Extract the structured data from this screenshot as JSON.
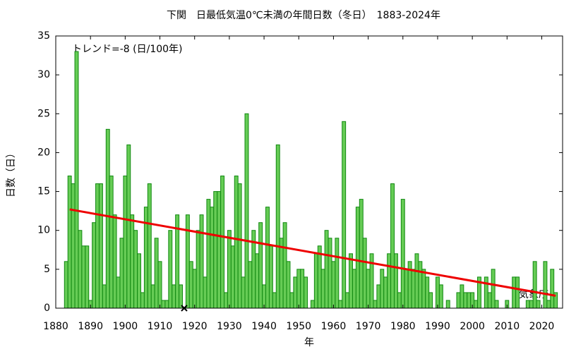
{
  "chart_data": {
    "type": "bar",
    "title": "下関　日最低気温0℃未満の年間日数（冬日）　1883-2024年",
    "xlabel": "年",
    "ylabel": "日数（日）",
    "annotations": [
      "トレンド=-8 (日/100年)",
      "気象庁"
    ],
    "x": [
      1883,
      1884,
      1885,
      1886,
      1887,
      1888,
      1889,
      1890,
      1891,
      1892,
      1893,
      1894,
      1895,
      1896,
      1897,
      1898,
      1899,
      1900,
      1901,
      1902,
      1903,
      1904,
      1905,
      1906,
      1907,
      1908,
      1909,
      1910,
      1911,
      1912,
      1913,
      1914,
      1915,
      1916,
      1917,
      1918,
      1919,
      1920,
      1921,
      1922,
      1923,
      1924,
      1925,
      1926,
      1927,
      1928,
      1929,
      1930,
      1931,
      1932,
      1933,
      1934,
      1935,
      1936,
      1937,
      1938,
      1939,
      1940,
      1941,
      1942,
      1943,
      1944,
      1945,
      1946,
      1947,
      1948,
      1949,
      1950,
      1951,
      1952,
      1953,
      1954,
      1955,
      1956,
      1957,
      1958,
      1959,
      1960,
      1961,
      1962,
      1963,
      1964,
      1965,
      1966,
      1967,
      1968,
      1969,
      1970,
      1971,
      1972,
      1973,
      1974,
      1975,
      1976,
      1977,
      1978,
      1979,
      1980,
      1981,
      1982,
      1983,
      1984,
      1985,
      1986,
      1987,
      1988,
      1989,
      1990,
      1991,
      1992,
      1993,
      1994,
      1995,
      1996,
      1997,
      1998,
      1999,
      2000,
      2001,
      2002,
      2003,
      2004,
      2005,
      2006,
      2007,
      2008,
      2009,
      2010,
      2011,
      2012,
      2013,
      2014,
      2015,
      2016,
      2017,
      2018,
      2019,
      2020,
      2021,
      2022,
      2023,
      2024
    ],
    "values": [
      6,
      17,
      16,
      33,
      10,
      8,
      8,
      1,
      11,
      16,
      16,
      3,
      23,
      17,
      12,
      4,
      9,
      17,
      21,
      12,
      10,
      7,
      2,
      13,
      16,
      3,
      9,
      6,
      1,
      1,
      10,
      3,
      12,
      3,
      null,
      12,
      6,
      5,
      10,
      12,
      4,
      14,
      13,
      15,
      15,
      17,
      2,
      10,
      8,
      17,
      16,
      4,
      25,
      6,
      10,
      7,
      11,
      3,
      13,
      8,
      2,
      21,
      9,
      11,
      6,
      2,
      4,
      5,
      5,
      4,
      0,
      1,
      7,
      8,
      5,
      10,
      9,
      6,
      9,
      1,
      24,
      2,
      7,
      5,
      13,
      14,
      9,
      5,
      7,
      1,
      3,
      5,
      4,
      7,
      16,
      7,
      2,
      14,
      5,
      6,
      5,
      7,
      6,
      5,
      4,
      2,
      0,
      4,
      3,
      0,
      1,
      0,
      0,
      2,
      3,
      2,
      2,
      2,
      1,
      4,
      0,
      4,
      2,
      5,
      1,
      0,
      0,
      1,
      0,
      4,
      4,
      0,
      0,
      1,
      1,
      6,
      1,
      0,
      6,
      1,
      5,
      2
    ],
    "color": "#66cc55",
    "edge_color": "#118811",
    "missing_x": [
      1917
    ],
    "trend": {
      "x": [
        1884,
        2024
      ],
      "values": [
        12.7,
        1.6
      ],
      "color": "#ee0000"
    },
    "xlim": [
      1880,
      2026
    ],
    "xticks": [
      1880,
      1890,
      1900,
      1910,
      1920,
      1930,
      1940,
      1950,
      1960,
      1970,
      1980,
      1990,
      2000,
      2010,
      2020
    ],
    "ylim": [
      0,
      35
    ],
    "yticks": [
      0,
      5,
      10,
      15,
      20,
      25,
      30,
      35
    ],
    "grid": false
  }
}
